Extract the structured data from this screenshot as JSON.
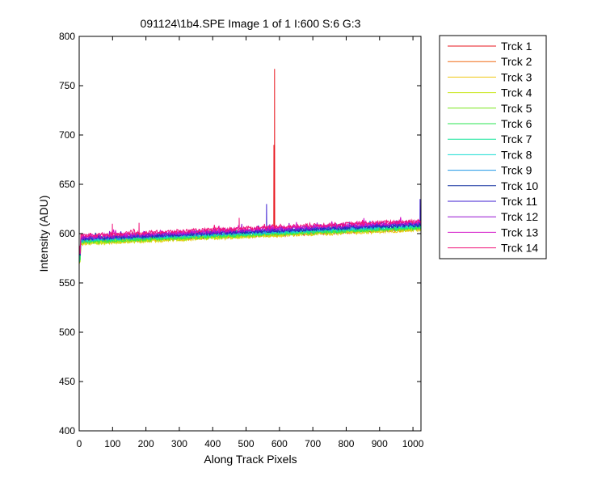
{
  "chart_data": {
    "type": "line",
    "title": "091124\\1b4.SPE  Image 1 of 1  I:600  S:6  G:3",
    "xlabel": "Along Track Pixels",
    "ylabel": "Intensity (ADU)",
    "xlim": [
      0,
      1024
    ],
    "ylim": [
      400,
      800
    ],
    "xticks": [
      0,
      100,
      200,
      300,
      400,
      500,
      600,
      700,
      800,
      900,
      1000
    ],
    "yticks": [
      400,
      450,
      500,
      550,
      600,
      650,
      700,
      750,
      800
    ],
    "grid": false,
    "legend_position": "outside-right-top",
    "x_range": [
      1,
      1024
    ],
    "series": [
      {
        "name": "Trck 1",
        "color": "#e8141c",
        "start": 592,
        "end": 605,
        "spikes": [
          [
            585,
            767
          ],
          [
            584,
            690
          ]
        ]
      },
      {
        "name": "Trck 2",
        "color": "#f06a14",
        "start": 591,
        "end": 605
      },
      {
        "name": "Trck 3",
        "color": "#f0c814",
        "start": 590,
        "end": 604
      },
      {
        "name": "Trck 4",
        "color": "#c8e614",
        "start": 590,
        "end": 605
      },
      {
        "name": "Trck 5",
        "color": "#78e61e",
        "start": 591,
        "end": 606
      },
      {
        "name": "Trck 6",
        "color": "#28e650",
        "start": 592,
        "end": 606
      },
      {
        "name": "Trck 7",
        "color": "#14e69a",
        "start": 593,
        "end": 607
      },
      {
        "name": "Trck 8",
        "color": "#14dcd2",
        "start": 594,
        "end": 608
      },
      {
        "name": "Trck 9",
        "color": "#1e96e6",
        "start": 594,
        "end": 609
      },
      {
        "name": "Trck 10",
        "color": "#1432a0",
        "start": 595,
        "end": 609
      },
      {
        "name": "Trck 11",
        "color": "#3c1ed2",
        "start": 595,
        "end": 610,
        "spikes": [
          [
            562,
            630
          ],
          [
            1021,
            635
          ],
          [
            1022,
            622
          ]
        ]
      },
      {
        "name": "Trck 12",
        "color": "#9614d2",
        "start": 596,
        "end": 611
      },
      {
        "name": "Trck 13",
        "color": "#d214c8",
        "start": 597,
        "end": 612
      },
      {
        "name": "Trck 14",
        "color": "#f0147a",
        "start": 598,
        "end": 613,
        "spikes": [
          [
            100,
            610
          ],
          [
            180,
            611
          ],
          [
            480,
            616
          ]
        ]
      }
    ]
  }
}
